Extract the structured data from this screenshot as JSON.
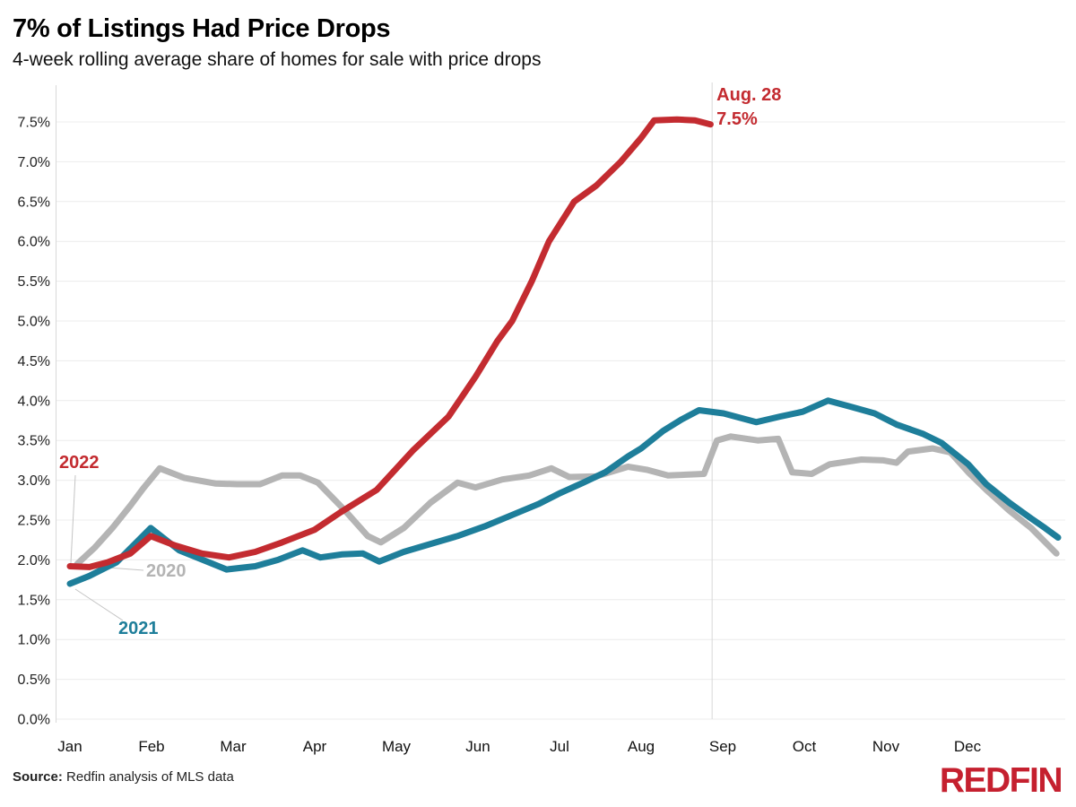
{
  "header": {
    "title": "7% of Listings Had Price Drops",
    "subtitle": "4-week rolling average share of homes for sale with price drops"
  },
  "footer": {
    "source_label": "Source:",
    "source_text": "Redfin analysis of MLS data",
    "logo_text": "REDFIN"
  },
  "colors": {
    "red": "#c32b30",
    "teal": "#1e7e9a",
    "gray": "#b4b4b4",
    "grid": "#ececec",
    "axis": "#d9d9d9",
    "ref_line": "#d8d8d8",
    "leader": "#c4c4c4"
  },
  "chart_data": {
    "type": "line",
    "title": "7% of Listings Had Price Drops",
    "subtitle": "4-week rolling average share of homes for sale with price drops",
    "grid": "horizontal",
    "ylim": [
      0,
      7.5
    ],
    "y_tick_step": 0.5,
    "y_unit": "%",
    "y_tick_labels": [
      "0.0%",
      "0.5%",
      "1.0%",
      "1.5%",
      "2.0%",
      "2.5%",
      "3.0%",
      "3.5%",
      "4.0%",
      "4.5%",
      "5.0%",
      "5.5%",
      "6.0%",
      "6.5%",
      "7.0%",
      "7.5%"
    ],
    "x_tick_labels": [
      "Jan",
      "Feb",
      "Mar",
      "Apr",
      "May",
      "Jun",
      "Jul",
      "Aug",
      "Sep",
      "Oct",
      "Nov",
      "Dec"
    ],
    "x_unit": "fractional month index, 0 = Jan 1",
    "annotation": {
      "line1": "Aug. 28",
      "line2": "7.5%",
      "x": 7.87,
      "y": 7.5
    },
    "series": [
      {
        "name": "2020",
        "color_key": "gray",
        "points": [
          [
            0.09,
            1.95
          ],
          [
            0.3,
            2.15
          ],
          [
            0.52,
            2.4
          ],
          [
            0.74,
            2.68
          ],
          [
            0.9,
            2.9
          ],
          [
            1.1,
            3.15
          ],
          [
            1.4,
            3.03
          ],
          [
            1.78,
            2.96
          ],
          [
            2.05,
            2.95
          ],
          [
            2.33,
            2.95
          ],
          [
            2.6,
            3.06
          ],
          [
            2.82,
            3.06
          ],
          [
            3.04,
            2.97
          ],
          [
            3.37,
            2.62
          ],
          [
            3.65,
            2.3
          ],
          [
            3.81,
            2.22
          ],
          [
            4.09,
            2.4
          ],
          [
            4.42,
            2.72
          ],
          [
            4.75,
            2.97
          ],
          [
            4.97,
            2.91
          ],
          [
            5.3,
            3.01
          ],
          [
            5.63,
            3.06
          ],
          [
            5.9,
            3.15
          ],
          [
            6.12,
            3.04
          ],
          [
            6.45,
            3.05
          ],
          [
            6.84,
            3.17
          ],
          [
            7.08,
            3.13
          ],
          [
            7.33,
            3.06
          ],
          [
            7.77,
            3.08
          ],
          [
            7.93,
            3.5
          ],
          [
            8.1,
            3.55
          ],
          [
            8.43,
            3.5
          ],
          [
            8.68,
            3.52
          ],
          [
            8.85,
            3.1
          ],
          [
            9.09,
            3.08
          ],
          [
            9.31,
            3.2
          ],
          [
            9.7,
            3.26
          ],
          [
            9.97,
            3.25
          ],
          [
            10.13,
            3.22
          ],
          [
            10.27,
            3.36
          ],
          [
            10.57,
            3.4
          ],
          [
            10.79,
            3.35
          ],
          [
            11.01,
            3.1
          ],
          [
            11.23,
            2.88
          ],
          [
            11.51,
            2.62
          ],
          [
            11.78,
            2.4
          ],
          [
            12.09,
            2.08
          ]
        ]
      },
      {
        "name": "2021",
        "color_key": "teal",
        "points": [
          [
            0,
            1.7
          ],
          [
            0.24,
            1.8
          ],
          [
            0.57,
            1.97
          ],
          [
            0.99,
            2.4
          ],
          [
            1.34,
            2.12
          ],
          [
            1.92,
            1.88
          ],
          [
            2.27,
            1.92
          ],
          [
            2.55,
            2.0
          ],
          [
            2.85,
            2.12
          ],
          [
            3.07,
            2.03
          ],
          [
            3.34,
            2.07
          ],
          [
            3.59,
            2.08
          ],
          [
            3.79,
            1.98
          ],
          [
            4.09,
            2.1
          ],
          [
            4.42,
            2.2
          ],
          [
            4.75,
            2.3
          ],
          [
            5.08,
            2.42
          ],
          [
            5.41,
            2.56
          ],
          [
            5.74,
            2.7
          ],
          [
            6.01,
            2.84
          ],
          [
            6.29,
            2.97
          ],
          [
            6.56,
            3.1
          ],
          [
            6.84,
            3.3
          ],
          [
            7.0,
            3.4
          ],
          [
            7.27,
            3.62
          ],
          [
            7.49,
            3.76
          ],
          [
            7.71,
            3.88
          ],
          [
            8.01,
            3.84
          ],
          [
            8.41,
            3.73
          ],
          [
            8.7,
            3.8
          ],
          [
            8.98,
            3.86
          ],
          [
            9.29,
            4.0
          ],
          [
            9.58,
            3.92
          ],
          [
            9.86,
            3.84
          ],
          [
            10.13,
            3.7
          ],
          [
            10.46,
            3.58
          ],
          [
            10.68,
            3.47
          ],
          [
            11.01,
            3.2
          ],
          [
            11.23,
            2.95
          ],
          [
            11.51,
            2.72
          ],
          [
            11.78,
            2.52
          ],
          [
            11.95,
            2.4
          ],
          [
            12.11,
            2.28
          ]
        ]
      },
      {
        "name": "2022",
        "color_key": "red",
        "points": [
          [
            0,
            1.92
          ],
          [
            0.24,
            1.91
          ],
          [
            0.46,
            1.97
          ],
          [
            0.74,
            2.08
          ],
          [
            0.99,
            2.3
          ],
          [
            1.29,
            2.18
          ],
          [
            1.62,
            2.08
          ],
          [
            1.95,
            2.03
          ],
          [
            2.27,
            2.1
          ],
          [
            2.6,
            2.22
          ],
          [
            3.0,
            2.38
          ],
          [
            3.32,
            2.6
          ],
          [
            3.76,
            2.88
          ],
          [
            4.2,
            3.37
          ],
          [
            4.64,
            3.8
          ],
          [
            4.97,
            4.3
          ],
          [
            5.24,
            4.75
          ],
          [
            5.42,
            5.0
          ],
          [
            5.66,
            5.5
          ],
          [
            5.87,
            6.0
          ],
          [
            6.18,
            6.5
          ],
          [
            6.45,
            6.7
          ],
          [
            6.75,
            7.0
          ],
          [
            7.0,
            7.3
          ],
          [
            7.16,
            7.52
          ],
          [
            7.44,
            7.53
          ],
          [
            7.66,
            7.52
          ],
          [
            7.85,
            7.47
          ]
        ]
      }
    ],
    "legend_position": "labels next to line starts"
  }
}
